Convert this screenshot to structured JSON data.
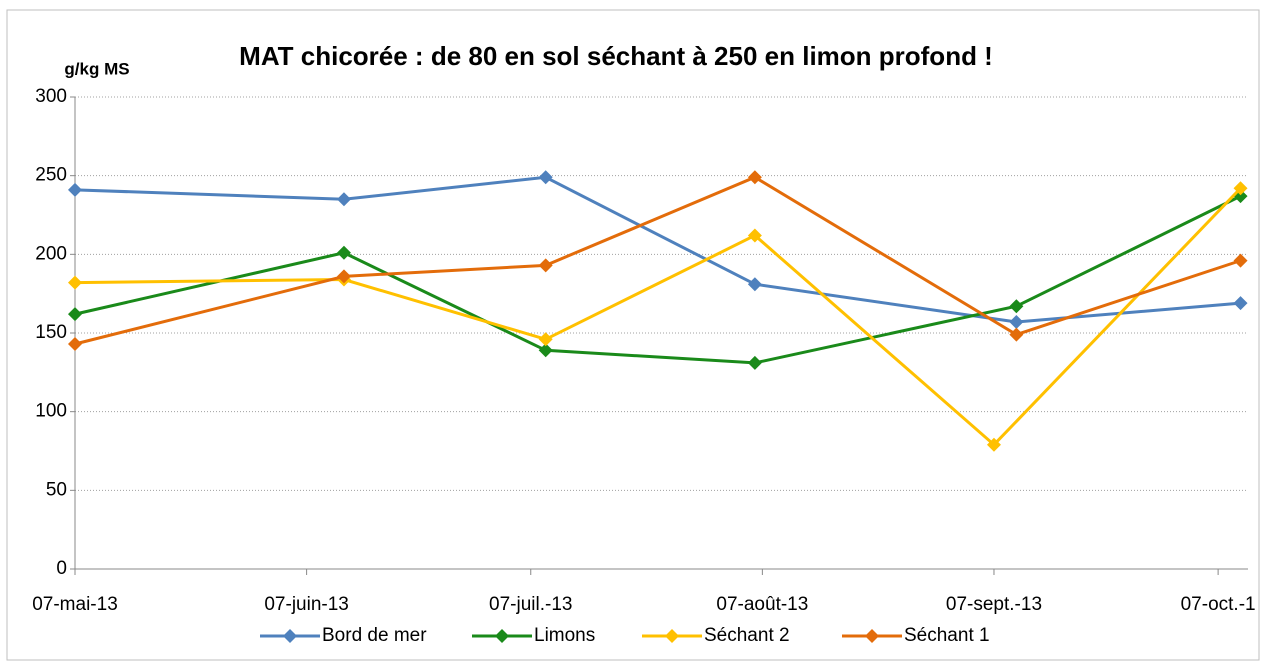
{
  "chart_data": {
    "type": "line",
    "title": "MAT chicorée : de 80 en sol séchant à 250 en limon profond !",
    "y_label": "g/kg MS",
    "xlim": [
      "2013-05-07",
      "2013-10-11"
    ],
    "xticks": [
      {
        "value": "2013-05-07",
        "label": "07-mai-13"
      },
      {
        "value": "2013-06-07",
        "label": "07-juin-13"
      },
      {
        "value": "2013-07-07",
        "label": "07-juil.-13"
      },
      {
        "value": "2013-08-07",
        "label": "07-août-13"
      },
      {
        "value": "2013-09-07",
        "label": "07-sept.-13"
      },
      {
        "value": "2013-10-07",
        "label": "07-oct.-1"
      }
    ],
    "ylim": [
      0,
      300
    ],
    "yticks": [
      0,
      50,
      100,
      150,
      200,
      250,
      300
    ],
    "grid": true,
    "legend": "bottom",
    "series": [
      {
        "name": "Bord de mer",
        "color": "#4f81bd",
        "x": [
          "2013-05-07",
          "2013-06-12",
          "2013-07-09",
          "2013-08-06",
          "2013-09-10",
          "2013-10-10"
        ],
        "values": [
          241,
          235,
          249,
          181,
          157,
          169
        ]
      },
      {
        "name": "Limons",
        "color": "#1a8a1a",
        "x": [
          "2013-05-07",
          "2013-06-12",
          "2013-07-09",
          "2013-08-06",
          "2013-09-10",
          "2013-10-10"
        ],
        "values": [
          162,
          201,
          139,
          131,
          167,
          237
        ]
      },
      {
        "name": "Séchant 2",
        "color": "#ffc000",
        "x": [
          "2013-05-07",
          "2013-06-12",
          "2013-07-09",
          "2013-08-06",
          "2013-09-07",
          "2013-10-10"
        ],
        "values": [
          182,
          184,
          146,
          212,
          79,
          242
        ]
      },
      {
        "name": "Séchant 1",
        "color": "#e36c0a",
        "x": [
          "2013-05-07",
          "2013-06-12",
          "2013-07-09",
          "2013-08-06",
          "2013-09-10",
          "2013-10-10"
        ],
        "values": [
          143,
          186,
          193,
          249,
          149,
          196
        ]
      }
    ]
  }
}
